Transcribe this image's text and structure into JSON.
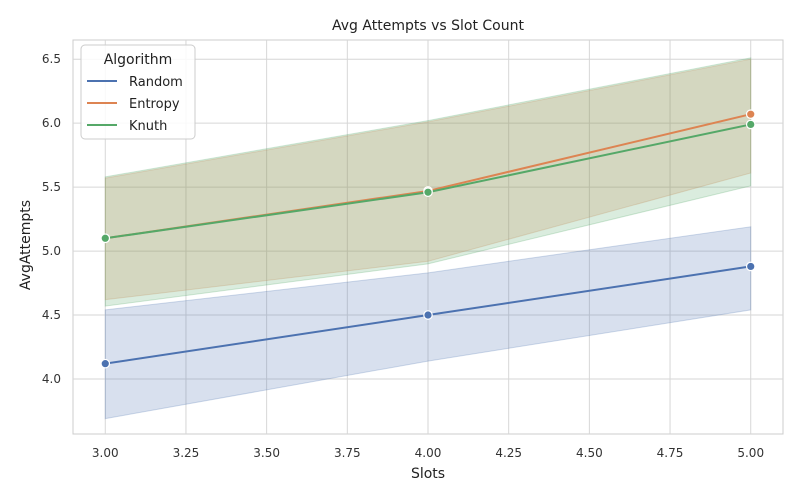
{
  "chart_data": {
    "type": "line",
    "title": "Avg Attempts vs Slot Count",
    "xlabel": "Slots",
    "ylabel": "AvgAttempts",
    "xlim": [
      2.9,
      5.1
    ],
    "ylim": [
      3.57,
      6.65
    ],
    "x_ticks": [
      3.0,
      3.25,
      3.5,
      3.75,
      4.0,
      4.25,
      4.5,
      4.75,
      5.0
    ],
    "x_tick_labels": [
      "3.00",
      "3.25",
      "3.50",
      "3.75",
      "4.00",
      "4.25",
      "4.50",
      "4.75",
      "5.00"
    ],
    "y_ticks": [
      4.0,
      4.5,
      5.0,
      5.5,
      6.0,
      6.5
    ],
    "y_tick_labels": [
      "4.0",
      "4.5",
      "5.0",
      "5.5",
      "6.0",
      "6.5"
    ],
    "grid": true,
    "legend": {
      "title": "Algorithm",
      "placement": "top-left"
    },
    "x": [
      3,
      4,
      5
    ],
    "series": [
      {
        "name": "Random",
        "color": "#4c72b0",
        "values": [
          4.12,
          4.5,
          4.88
        ],
        "ci_low": [
          3.69,
          4.14,
          4.54
        ],
        "ci_high": [
          4.54,
          4.83,
          5.19
        ]
      },
      {
        "name": "Entropy",
        "color": "#dd8452",
        "values": [
          5.1,
          5.47,
          6.07
        ],
        "ci_low": [
          4.62,
          4.92,
          5.61
        ],
        "ci_high": [
          5.57,
          6.01,
          6.5
        ]
      },
      {
        "name": "Knuth",
        "color": "#55a868",
        "values": [
          5.1,
          5.46,
          5.99
        ],
        "ci_low": [
          4.57,
          4.9,
          5.51
        ],
        "ci_high": [
          5.58,
          6.02,
          6.51
        ]
      }
    ]
  }
}
